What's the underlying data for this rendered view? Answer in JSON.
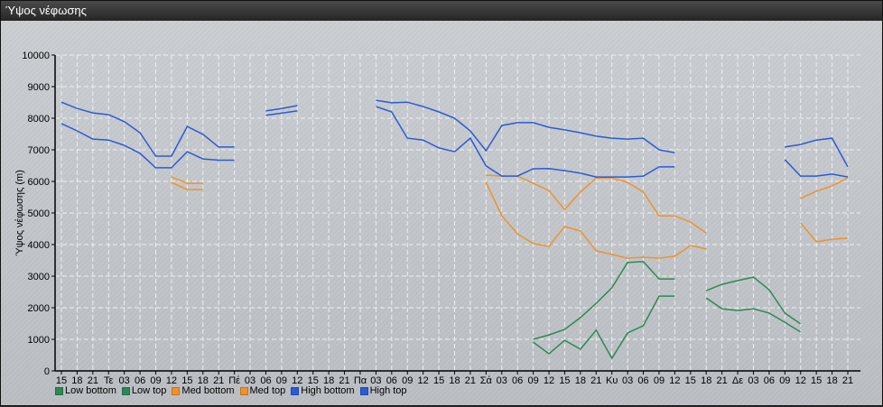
{
  "window": {
    "title": "Ύψος νέφωσης"
  },
  "chart_data": {
    "type": "line",
    "title": "",
    "ylabel": "Ύψος νέφωσης (m)",
    "xlabel": "",
    "ylim": [
      0,
      10000
    ],
    "yticks": [
      0,
      1000,
      2000,
      3000,
      4000,
      5000,
      6000,
      7000,
      8000,
      9000,
      10000
    ],
    "grid": true,
    "legend_position": "bottom-left",
    "categories": [
      "15",
      "18",
      "21",
      "Τε",
      "03",
      "06",
      "09",
      "12",
      "15",
      "18",
      "21",
      "Πέ",
      "03",
      "06",
      "09",
      "12",
      "15",
      "18",
      "21",
      "Πα",
      "03",
      "06",
      "09",
      "12",
      "15",
      "18",
      "21",
      "Σά",
      "03",
      "06",
      "09",
      "12",
      "15",
      "18",
      "21",
      "Κυ",
      "03",
      "06",
      "09",
      "12",
      "15",
      "18",
      "21",
      "Δε",
      "03",
      "06",
      "09",
      "12",
      "15",
      "18",
      "21"
    ],
    "series": [
      {
        "name": "Low bottom",
        "color": "#2a8a55",
        "values": [
          null,
          null,
          null,
          null,
          null,
          null,
          null,
          null,
          null,
          null,
          null,
          null,
          null,
          null,
          null,
          null,
          null,
          null,
          null,
          null,
          null,
          null,
          null,
          null,
          null,
          null,
          null,
          null,
          null,
          null,
          910,
          540,
          970,
          690,
          1290,
          400,
          1200,
          1430,
          2370,
          2370,
          null,
          2310,
          1970,
          1910,
          1970,
          1830,
          1540,
          1230,
          null,
          null,
          null
        ]
      },
      {
        "name": "Low top",
        "color": "#2a8a55",
        "values": [
          null,
          null,
          null,
          null,
          null,
          null,
          null,
          null,
          null,
          null,
          null,
          null,
          null,
          null,
          null,
          null,
          null,
          null,
          null,
          null,
          null,
          null,
          null,
          null,
          null,
          null,
          null,
          null,
          null,
          null,
          1000,
          1140,
          1310,
          1690,
          2140,
          2630,
          3430,
          3460,
          2910,
          2910,
          null,
          2540,
          2740,
          2860,
          2970,
          2570,
          1830,
          1490,
          null,
          null,
          null
        ]
      },
      {
        "name": "Med bottom",
        "color": "#f0922a",
        "values": [
          null,
          null,
          null,
          null,
          null,
          null,
          null,
          5970,
          5740,
          5740,
          null,
          null,
          null,
          null,
          null,
          null,
          null,
          null,
          null,
          null,
          null,
          null,
          null,
          null,
          null,
          null,
          null,
          5970,
          4910,
          4340,
          4030,
          3940,
          4570,
          4430,
          3800,
          3690,
          3570,
          3600,
          3570,
          3630,
          3970,
          3860,
          null,
          null,
          null,
          null,
          null,
          4690,
          4090,
          4170,
          4200
        ]
      },
      {
        "name": "Med top",
        "color": "#f0922a",
        "values": [
          null,
          null,
          null,
          null,
          null,
          null,
          null,
          6140,
          5940,
          5940,
          null,
          null,
          null,
          null,
          null,
          null,
          null,
          null,
          null,
          null,
          null,
          null,
          null,
          null,
          null,
          null,
          null,
          6200,
          6170,
          6170,
          5940,
          5710,
          5110,
          5660,
          6110,
          6110,
          5970,
          5660,
          4910,
          4910,
          4710,
          4370,
          null,
          null,
          null,
          null,
          null,
          5460,
          5690,
          5860,
          6110
        ]
      },
      {
        "name": "High bottom",
        "color": "#2a5bd7",
        "values": [
          7830,
          7600,
          7340,
          7310,
          7140,
          6890,
          6430,
          6430,
          6940,
          6710,
          6670,
          6670,
          null,
          8090,
          8160,
          8230,
          null,
          null,
          null,
          null,
          8370,
          8200,
          7370,
          7310,
          7060,
          6940,
          7370,
          6490,
          6170,
          6170,
          6400,
          6410,
          6340,
          6260,
          6140,
          6140,
          6140,
          6170,
          6460,
          6460,
          null,
          null,
          null,
          null,
          null,
          null,
          6690,
          6170,
          6170,
          6230,
          6140
        ]
      },
      {
        "name": "High top",
        "color": "#2a5bd7",
        "values": [
          8510,
          8310,
          8170,
          8110,
          7890,
          7540,
          6800,
          6800,
          7740,
          7490,
          7090,
          7090,
          null,
          8230,
          8310,
          8400,
          null,
          null,
          null,
          null,
          8570,
          8490,
          8510,
          8370,
          8200,
          8000,
          7600,
          6970,
          7770,
          7860,
          7860,
          7710,
          7630,
          7540,
          7430,
          7370,
          7340,
          7370,
          7000,
          6910,
          null,
          null,
          null,
          null,
          null,
          null,
          7090,
          7170,
          7310,
          7370,
          6460
        ]
      }
    ]
  }
}
